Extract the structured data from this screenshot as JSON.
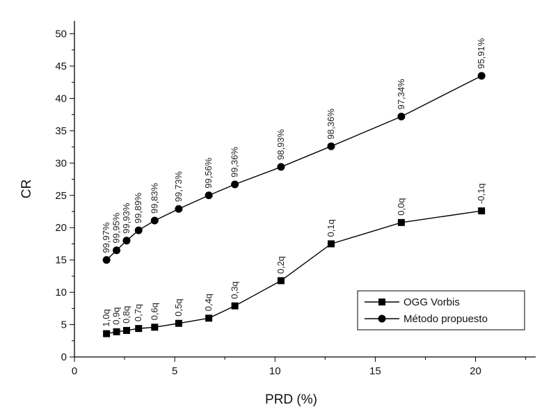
{
  "chart_data": {
    "type": "line",
    "title": "",
    "xlabel": "PRD (%)",
    "ylabel": "CR",
    "xlim": [
      0,
      23
    ],
    "ylim": [
      0,
      52
    ],
    "x_ticks": [
      0,
      5,
      10,
      15,
      20
    ],
    "y_ticks": [
      0,
      5,
      10,
      15,
      20,
      25,
      30,
      35,
      40,
      45,
      50
    ],
    "grid": false,
    "legend_position": "bottom-right",
    "series": [
      {
        "name": "OGG Vorbis",
        "marker": "square",
        "color": "#000000",
        "x": [
          1.6,
          2.1,
          2.6,
          3.2,
          4.0,
          5.2,
          6.7,
          8.0,
          10.3,
          12.8,
          16.3,
          20.3
        ],
        "y": [
          3.6,
          3.9,
          4.1,
          4.4,
          4.6,
          5.2,
          6.0,
          7.9,
          11.8,
          17.5,
          20.8,
          22.6
        ],
        "labels": [
          "1,0q",
          "0,9q",
          "0,8q",
          "0,7q",
          "0,6q",
          "0,5q",
          "0,4q",
          "0,3q",
          "0,2q",
          "0,1q",
          "0,0q",
          "-0,1q"
        ]
      },
      {
        "name": "Método propuesto",
        "marker": "circle",
        "color": "#000000",
        "x": [
          1.6,
          2.1,
          2.6,
          3.2,
          4.0,
          5.2,
          6.7,
          8.0,
          10.3,
          12.8,
          16.3,
          20.3
        ],
        "y": [
          15.0,
          16.5,
          18.0,
          19.6,
          21.1,
          22.9,
          25.0,
          26.7,
          29.4,
          32.6,
          37.2,
          43.5
        ],
        "labels": [
          "99,97%",
          "99,95%",
          "99,93%",
          "99,89%",
          "99,83%",
          "99,73%",
          "99,56%",
          "99,36%",
          "98,93%",
          "98,36%",
          "97,34%",
          "95,91%"
        ]
      }
    ]
  }
}
